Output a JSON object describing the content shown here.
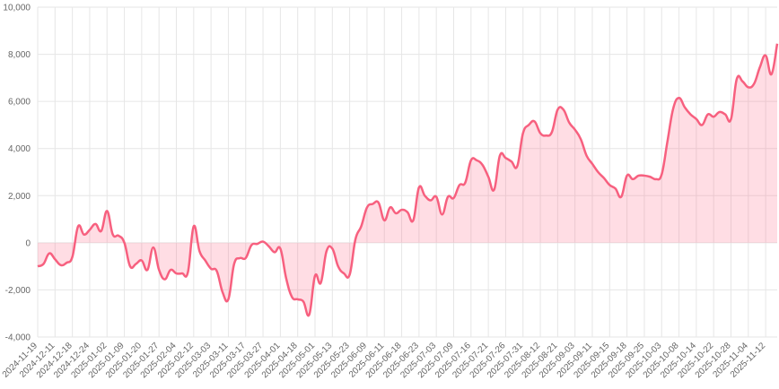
{
  "chart_data": {
    "type": "line",
    "categories": [
      "2024-11-19",
      null,
      null,
      "2024-12-11",
      null,
      null,
      "2024-12-18",
      null,
      null,
      "2024-12-24",
      null,
      null,
      "2025-01-02",
      null,
      null,
      "2025-01-09",
      null,
      null,
      "2025-01-20",
      null,
      null,
      "2025-01-27",
      null,
      null,
      "2025-02-04",
      null,
      null,
      "2025-02-12",
      null,
      null,
      "2025-03-03",
      null,
      null,
      "2025-03-11",
      null,
      null,
      "2025-03-17",
      null,
      null,
      "2025-03-27",
      null,
      null,
      "2025-04-01",
      null,
      null,
      "2025-04-18",
      null,
      null,
      "2025-05-01",
      null,
      null,
      "2025-05-13",
      null,
      null,
      "2025-05-23",
      null,
      null,
      "2025-06-09",
      null,
      null,
      "2025-06-11",
      null,
      null,
      "2025-06-18",
      null,
      null,
      "2025-06-23",
      null,
      null,
      "2025-07-03",
      null,
      null,
      "2025-07-09",
      null,
      null,
      "2025-07-16",
      null,
      null,
      "2025-07-21",
      null,
      null,
      "2025-07-26",
      null,
      null,
      "2025-07-31",
      null,
      null,
      "2025-08-12",
      null,
      null,
      "2025-08-21",
      null,
      null,
      "2025-09-03",
      null,
      null,
      "2025-09-11",
      null,
      null,
      "2025-09-15",
      null,
      null,
      "2025-09-18",
      null,
      null,
      "2025-09-25",
      null,
      null,
      "2025-10-03",
      null,
      null,
      "2025-10-08",
      null,
      null,
      "2025-10-14",
      null,
      null,
      "2025-10-22",
      null,
      null,
      "2025-10-28",
      null,
      null,
      "2025-11-04",
      null,
      null,
      "2025-11-12",
      null,
      null
    ],
    "series": [
      {
        "color": "#f7607f",
        "fill": "rgba(255,99,132,0.22)",
        "values": [
          -1000,
          -900,
          -450,
          -700,
          -950,
          -850,
          -600,
          700,
          350,
          550,
          800,
          500,
          1350,
          350,
          300,
          0,
          -1000,
          -900,
          -750,
          -1150,
          -200,
          -1150,
          -1550,
          -1150,
          -1300,
          -1300,
          -1250,
          700,
          -350,
          -750,
          -1100,
          -1200,
          -2100,
          -2400,
          -900,
          -650,
          -650,
          -100,
          -50,
          50,
          -150,
          -400,
          -250,
          -1500,
          -2300,
          -2400,
          -2500,
          -3050,
          -1400,
          -1700,
          -350,
          -250,
          -1000,
          -1300,
          -1350,
          150,
          700,
          1500,
          1650,
          1700,
          950,
          1500,
          1250,
          1400,
          1300,
          950,
          2350,
          2000,
          1800,
          1950,
          1200,
          1950,
          1900,
          2450,
          2550,
          3500,
          3500,
          3300,
          2800,
          2250,
          3700,
          3600,
          3450,
          3250,
          4650,
          5000,
          5150,
          4650,
          4550,
          4700,
          5650,
          5650,
          5100,
          4800,
          4400,
          3700,
          3350,
          3000,
          2750,
          2450,
          2300,
          1950,
          2850,
          2700,
          2850,
          2850,
          2800,
          2700,
          2900,
          4300,
          5700,
          6150,
          5750,
          5450,
          5250,
          5000,
          5450,
          5350,
          5550,
          5450,
          5250,
          6950,
          6850,
          6600,
          6750,
          7450,
          7950,
          7150,
          8450
        ]
      }
    ],
    "ylim": [
      -4000,
      10000
    ],
    "yticks": [
      {
        "value": -4000,
        "label": "-4,000"
      },
      {
        "value": -2000,
        "label": "-2,000"
      },
      0,
      {
        "value": 2000,
        "label": "2,000"
      },
      {
        "value": 4000,
        "label": "4,000"
      },
      {
        "value": 6000,
        "label": "6,000"
      },
      {
        "value": 8000,
        "label": "8,000"
      },
      {
        "value": 10000,
        "label": "10,000"
      }
    ],
    "grid": true
  }
}
